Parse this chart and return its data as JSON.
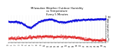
{
  "title": "Milwaukee Weather Outdoor Humidity\nvs Temperature\nEvery 5 Minutes",
  "title_fontsize": 2.8,
  "background_color": "#ffffff",
  "humidity_color": "#0000dd",
  "temp_color": "#dd0000",
  "grid_color": "#bbbbbb",
  "ylim": [
    -5,
    105
  ],
  "y_ticks": [
    0,
    10,
    20,
    30,
    40,
    50,
    60,
    70,
    80,
    90,
    100
  ],
  "n_points": 288,
  "line_width": 0.5,
  "marker_size": 0.6,
  "tick_fontsize": 1.8,
  "n_gridlines": 35,
  "n_xticks": 28
}
